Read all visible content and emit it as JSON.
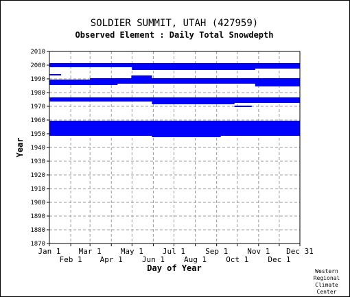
{
  "chart_data": {
    "type": "heatmap",
    "title": "SOLDIER SUMMIT, UTAH   (427959)",
    "subtitle": "Observed Element : Daily Total Snowdepth",
    "xlabel": "Day of Year",
    "ylabel": "Year",
    "xlim": [
      1,
      365
    ],
    "ylim": [
      1870,
      2010
    ],
    "grid": true,
    "series_color": "#0000ff",
    "y_ticks": [
      2010,
      2000,
      1990,
      1980,
      1970,
      1960,
      1950,
      1940,
      1930,
      1920,
      1910,
      1900,
      1890,
      1880,
      1870
    ],
    "x_ticks_top_row": [
      {
        "label": "Jan 1",
        "day": 1
      },
      {
        "label": "Mar 1",
        "day": 60
      },
      {
        "label": "May 1",
        "day": 121
      },
      {
        "label": "Jul 1",
        "day": 182
      },
      {
        "label": "Sep 1",
        "day": 244
      },
      {
        "label": "Nov 1",
        "day": 305
      },
      {
        "label": "Dec 31",
        "day": 365
      }
    ],
    "x_ticks_bottom_row": [
      {
        "label": "Feb 1",
        "day": 32
      },
      {
        "label": "Apr 1",
        "day": 91
      },
      {
        "label": "Jun 1",
        "day": 152
      },
      {
        "label": "Aug 1",
        "day": 213
      },
      {
        "label": "Oct 1",
        "day": 274
      },
      {
        "label": "Dec 1",
        "day": 335
      }
    ],
    "coverage": [
      {
        "year": 2001,
        "start": 1,
        "end": 365
      },
      {
        "year": 2000,
        "start": 1,
        "end": 365
      },
      {
        "year": 1999,
        "start": 1,
        "end": 365
      },
      {
        "year": 1998,
        "start": 121,
        "end": 365
      },
      {
        "year": 1997,
        "start": 121,
        "end": 300
      },
      {
        "year": 1993,
        "start": 1,
        "end": 18
      },
      {
        "year": 1992,
        "start": 120,
        "end": 150
      },
      {
        "year": 1991,
        "start": 120,
        "end": 150
      },
      {
        "year": 1990,
        "start": 60,
        "end": 365
      },
      {
        "year": 1989,
        "start": 1,
        "end": 365
      },
      {
        "year": 1988,
        "start": 1,
        "end": 365
      },
      {
        "year": 1987,
        "start": 1,
        "end": 365
      },
      {
        "year": 1986,
        "start": 1,
        "end": 100
      },
      {
        "year": 1986,
        "start": 300,
        "end": 365
      },
      {
        "year": 1985,
        "start": 300,
        "end": 365
      },
      {
        "year": 1976,
        "start": 1,
        "end": 365
      },
      {
        "year": 1975,
        "start": 1,
        "end": 365
      },
      {
        "year": 1974,
        "start": 1,
        "end": 365
      },
      {
        "year": 1973,
        "start": 150,
        "end": 365
      },
      {
        "year": 1972,
        "start": 150,
        "end": 270
      },
      {
        "year": 1970,
        "start": 270,
        "end": 295
      },
      {
        "year": 1959,
        "start": 1,
        "end": 365
      },
      {
        "year": 1958,
        "start": 1,
        "end": 365
      },
      {
        "year": 1957,
        "start": 1,
        "end": 365
      },
      {
        "year": 1956,
        "start": 1,
        "end": 365
      },
      {
        "year": 1955,
        "start": 1,
        "end": 365
      },
      {
        "year": 1954,
        "start": 1,
        "end": 365
      },
      {
        "year": 1953,
        "start": 1,
        "end": 365
      },
      {
        "year": 1952,
        "start": 1,
        "end": 365
      },
      {
        "year": 1951,
        "start": 1,
        "end": 365
      },
      {
        "year": 1950,
        "start": 1,
        "end": 365
      },
      {
        "year": 1949,
        "start": 1,
        "end": 365
      },
      {
        "year": 1948,
        "start": 150,
        "end": 250
      }
    ]
  },
  "credit": [
    "Western",
    "Regional",
    "Climate",
    "Center"
  ]
}
